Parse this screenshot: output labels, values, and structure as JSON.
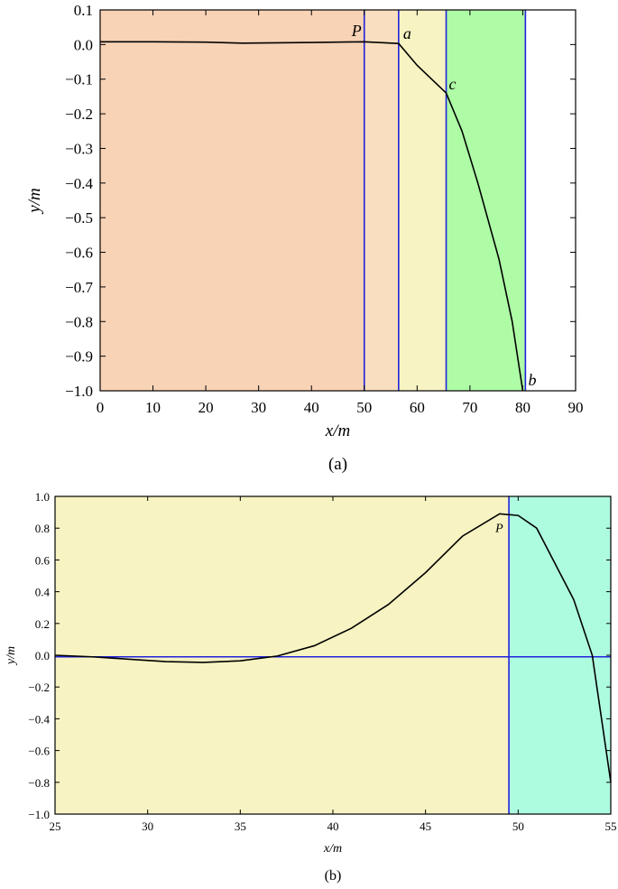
{
  "chart_data": [
    {
      "id": "a",
      "type": "line",
      "caption": "(a)",
      "xlabel": "x/m",
      "ylabel": "y/m",
      "xlim": [
        0,
        90
      ],
      "ylim": [
        -1.0,
        0.1
      ],
      "xticks": [
        0,
        10,
        20,
        30,
        40,
        50,
        60,
        70,
        80,
        90
      ],
      "xtick_labels": [
        "0",
        "10",
        "20",
        "30",
        "40",
        "50",
        "60",
        "70",
        "80",
        "90"
      ],
      "yticks": [
        0.1,
        0.0,
        -0.1,
        -0.2,
        -0.3,
        -0.4,
        -0.5,
        -0.6,
        -0.7,
        -0.8,
        -0.9,
        -1.0
      ],
      "ytick_labels": [
        "0.1",
        "0.0",
        "−0.1",
        "−0.2",
        "−0.3",
        "−0.4",
        "−0.5",
        "−0.6",
        "−0.7",
        "−0.8",
        "−0.9",
        "−1.0"
      ],
      "regions": [
        {
          "x0": 0,
          "x1": 50,
          "color": "#f9d3b6"
        },
        {
          "x0": 50,
          "x1": 56.5,
          "color": "#f9dfbf"
        },
        {
          "x0": 56.5,
          "x1": 65.5,
          "color": "#f7f3c2"
        },
        {
          "x0": 65.5,
          "x1": 80.5,
          "color": "#aefca6"
        }
      ],
      "vlines": [
        50,
        56.5,
        65.5,
        80.5
      ],
      "series": [
        {
          "x": [
            0,
            10,
            20,
            27,
            40,
            50,
            56.5,
            60,
            65.5,
            68.5,
            71.5,
            75.5,
            78,
            80
          ],
          "y": [
            0.008,
            0.008,
            0.007,
            0.004,
            0.006,
            0.008,
            0.003,
            -0.06,
            -0.14,
            -0.25,
            -0.4,
            -0.62,
            -0.8,
            -1.0
          ]
        }
      ],
      "annotations": [
        {
          "text": "P",
          "x": 50,
          "y": 0.003
        },
        {
          "text": "a",
          "x": 56.5,
          "y": 0.003
        },
        {
          "text": "c",
          "x": 65.5,
          "y": -0.14
        },
        {
          "text": "b",
          "x": 80,
          "y": -1.0
        }
      ]
    },
    {
      "id": "b",
      "type": "line",
      "caption": "(b)",
      "xlabel": "x/m",
      "ylabel": "y/m",
      "xlim": [
        25,
        55
      ],
      "ylim": [
        -1.0,
        1.0
      ],
      "xticks": [
        25,
        30,
        35,
        40,
        45,
        50,
        55
      ],
      "xtick_labels": [
        "25",
        "30",
        "35",
        "40",
        "45",
        "50",
        "55"
      ],
      "yticks": [
        1.0,
        0.8,
        0.6,
        0.4,
        0.2,
        0.0,
        -0.2,
        -0.4,
        -0.6,
        -0.8,
        -1.0
      ],
      "ytick_labels": [
        "1.0",
        "0.8",
        "0.6",
        "0.4",
        "0.2",
        "0.0",
        "−0.2",
        "−0.4",
        "−0.6",
        "−0.8",
        "−1.0"
      ],
      "regions": [
        {
          "x0": 25,
          "x1": 49.5,
          "color": "#f7f3c2"
        },
        {
          "x0": 49.5,
          "x1": 55,
          "color": "#aefce0"
        }
      ],
      "vlines": [
        49.5
      ],
      "hlines": [
        -0.01
      ],
      "series": [
        {
          "x": [
            25,
            27,
            29,
            31,
            33,
            35,
            37,
            39,
            41,
            43,
            45,
            47,
            49,
            50,
            51,
            53,
            54,
            55
          ],
          "y": [
            0.0,
            -0.01,
            -0.025,
            -0.04,
            -0.045,
            -0.035,
            -0.005,
            0.06,
            0.17,
            0.32,
            0.52,
            0.75,
            0.89,
            0.88,
            0.8,
            0.35,
            0.0,
            -0.8
          ]
        }
      ],
      "annotations": [
        {
          "text": "P",
          "x": 49.5,
          "y": 0.89
        }
      ]
    }
  ]
}
